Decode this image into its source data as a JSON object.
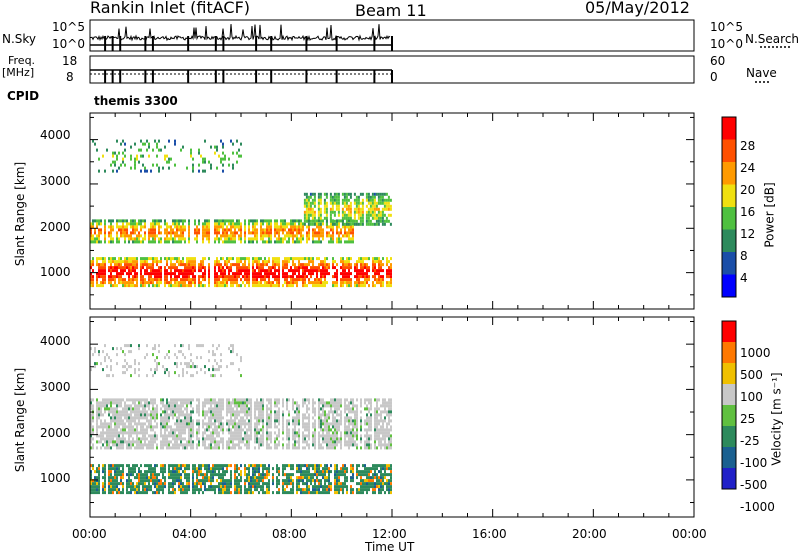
{
  "header": {
    "station": "Rankin Inlet (fitACF)",
    "beam": "Beam 11",
    "date": "05/May/2012"
  },
  "strip_labels": {
    "nsky": "N.Sky",
    "nsky_ticks": [
      "10^5",
      "10^0"
    ],
    "nsearch": "N.Search",
    "nsearch_ticks": [
      "10^5",
      "10^0"
    ],
    "freq": "Freq.",
    "freq_unit": "[MHz]",
    "freq_ticks": [
      "18",
      "8"
    ],
    "nave": "Nave",
    "nave_ticks": [
      "60",
      "0"
    ],
    "cpid": "CPID",
    "cpid_value": "themis 3300"
  },
  "panels": {
    "ylabel": "Slant Range [km]",
    "yticks": [
      "4000",
      "3000",
      "2000",
      "1000"
    ],
    "xlabel": "Time UT",
    "xticks": [
      "00:00",
      "04:00",
      "08:00",
      "12:00",
      "16:00",
      "20:00",
      "00:00"
    ]
  },
  "colorbars": {
    "power": {
      "label": "Power [dB]",
      "ticks": [
        "28",
        "24",
        "20",
        "16",
        "12",
        "8",
        "4"
      ],
      "colors": [
        "#0000ff",
        "#1a4ea8",
        "#2d8a5c",
        "#4fc040",
        "#f0e010",
        "#ff9a00",
        "#ff5000",
        "#ff0000"
      ]
    },
    "velocity": {
      "label": "Velocity [m s⁻¹]",
      "ticks": [
        "1000",
        "500",
        "100",
        "25",
        "-25",
        "-100",
        "-500",
        "-1000"
      ],
      "colors": [
        "#2020c8",
        "#1a6090",
        "#2d8a5c",
        "#60c040",
        "#c8c8c8",
        "#f0c000",
        "#ff7800",
        "#ff0000"
      ]
    }
  },
  "chart_data": [
    {
      "type": "heatmap",
      "name": "power",
      "x_range_hours": [
        0,
        24
      ],
      "ylim_km": [
        180,
        4600
      ],
      "data_end_hour": 12,
      "echo_bands": [
        {
          "hours": [
            0,
            12
          ],
          "range_km": [
            700,
            1350
          ],
          "peak_db": 28
        },
        {
          "hours": [
            0,
            10.5
          ],
          "range_km": [
            1700,
            2200
          ],
          "peak_db": 20
        },
        {
          "hours": [
            8.5,
            12
          ],
          "range_km": [
            2100,
            2800
          ],
          "peak_db": 14
        },
        {
          "hours": [
            0,
            6
          ],
          "range_km": [
            3300,
            4000
          ],
          "peak_db": 10
        }
      ]
    },
    {
      "type": "heatmap",
      "name": "velocity",
      "x_range_hours": [
        0,
        24
      ],
      "ylim_km": [
        180,
        4600
      ],
      "data_end_hour": 12,
      "echo_bands": [
        {
          "hours": [
            0,
            12
          ],
          "range_km": [
            700,
            1350
          ],
          "velocity_ms": 100
        },
        {
          "hours": [
            0,
            12
          ],
          "range_km": [
            1700,
            2800
          ],
          "velocity_ms": 0
        },
        {
          "hours": [
            0,
            6
          ],
          "range_km": [
            3300,
            4000
          ],
          "velocity_ms": 0
        }
      ]
    }
  ]
}
